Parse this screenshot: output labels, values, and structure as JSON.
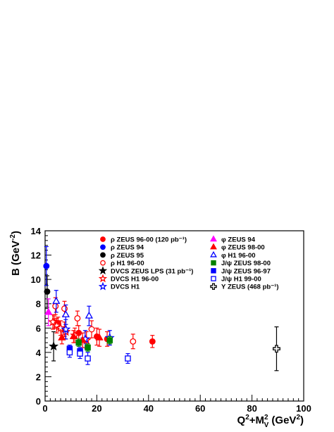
{
  "chart_data": {
    "type": "scatter",
    "xlabel": "Q²+M²ᵥ (GeV²)",
    "ylabel": "B (GeV⁻²)",
    "xlim": [
      0,
      100
    ],
    "ylim": [
      0,
      14
    ],
    "x_ticks": [
      "0",
      "20",
      "40",
      "60",
      "80",
      "100"
    ],
    "y_ticks": [
      "0",
      "2",
      "4",
      "6",
      "8",
      "10",
      "12",
      "14"
    ],
    "grid": false,
    "legend_position": "top-right",
    "series": [
      {
        "name": "ρ ZEUS 96-00 (120 pb⁻¹)",
        "color": "#ff0000",
        "marker": "circle-filled",
        "points": [
          [
            3.5,
            6.5,
            0.5
          ],
          [
            5,
            6.4,
            0.5
          ],
          [
            7.5,
            5.9,
            0.6
          ],
          [
            13,
            5.6,
            0.6
          ],
          [
            20,
            5.3,
            0.7
          ],
          [
            24,
            5.1,
            0.6
          ],
          [
            41.5,
            4.9,
            0.5
          ]
        ]
      },
      {
        "name": "ρ ZEUS 94",
        "color": "#0000ff",
        "marker": "circle-filled",
        "points": [
          [
            0.5,
            11.1,
            1.6
          ]
        ]
      },
      {
        "name": "ρ ZEUS 95",
        "color": "#000000",
        "marker": "circle-filled",
        "points": [
          [
            0.8,
            9.0,
            1.3
          ]
        ]
      },
      {
        "name": "ρ H1 96-00",
        "color": "#ff0000",
        "marker": "circle-open",
        "points": [
          [
            4,
            7.8,
            0.7
          ],
          [
            7.5,
            7.6,
            0.6
          ],
          [
            12.5,
            6.8,
            0.6
          ],
          [
            18,
            5.9,
            0.7
          ],
          [
            34,
            4.9,
            0.6
          ]
        ]
      },
      {
        "name": "DVCS ZEUS LPS (31 pb⁻¹)",
        "color": "#000000",
        "marker": "star-filled",
        "points": [
          [
            3.3,
            4.5,
            1.2
          ]
        ]
      },
      {
        "name": "DVCS H1 96-00",
        "color": "#ff0000",
        "marker": "star-open",
        "points": [
          [
            3,
            6.5,
            0.6
          ],
          [
            4.5,
            6.2,
            0.6
          ],
          [
            6,
            6.0,
            0.6
          ],
          [
            8,
            5.7,
            0.6
          ],
          [
            11.5,
            5.4,
            0.6
          ],
          [
            16,
            5.0,
            0.7
          ]
        ]
      },
      {
        "name": "DVCS H1",
        "color": "#0000ff",
        "marker": "star-open",
        "points": [
          [
            8,
            5.9,
            0.8
          ],
          [
            15.5,
            5.1,
            0.7
          ],
          [
            25,
            5.2,
            0.6
          ]
        ]
      },
      {
        "name": "φ ZEUS 94",
        "color": "#ff00ff",
        "marker": "triangle-filled",
        "points": [
          [
            1.3,
            7.3,
            1.1
          ]
        ]
      },
      {
        "name": "φ ZEUS 98-00",
        "color": "#ff0000",
        "marker": "triangle-filled",
        "points": [
          [
            6.5,
            5.2,
            0.5
          ],
          [
            11,
            5.3,
            0.5
          ],
          [
            14.5,
            5.0,
            0.6
          ],
          [
            21,
            5.2,
            0.7
          ]
        ]
      },
      {
        "name": "φ H1 96-00",
        "color": "#0000ff",
        "marker": "triangle-open",
        "points": [
          [
            4.3,
            8.2,
            0.9
          ],
          [
            8,
            7.1,
            0.8
          ],
          [
            17,
            7.0,
            0.8
          ]
        ]
      },
      {
        "name": "J/ψ ZEUS 98-00",
        "color": "#008000",
        "marker": "square-filled",
        "points": [
          [
            13,
            4.8,
            0.3
          ],
          [
            16.5,
            4.4,
            0.3
          ],
          [
            25,
            5.0,
            0.3
          ]
        ]
      },
      {
        "name": "J/ψ ZEUS 96-97",
        "color": "#0000ff",
        "marker": "square-filled",
        "points": [
          [
            9.5,
            4.3,
            0.3
          ],
          [
            13.5,
            4.1,
            0.3
          ]
        ]
      },
      {
        "name": "J/ψ H1 99-00",
        "color": "#0000ff",
        "marker": "square-open",
        "points": [
          [
            9.5,
            4.0,
            0.4
          ],
          [
            13.5,
            3.9,
            0.4
          ],
          [
            16.5,
            3.5,
            0.5
          ],
          [
            32,
            3.5,
            0.4
          ]
        ]
      },
      {
        "name": "Υ ZEUS (468 pb⁻¹)",
        "color": "#000000",
        "marker": "cross-open",
        "points": [
          [
            89.5,
            4.3,
            1.8
          ]
        ]
      }
    ]
  }
}
